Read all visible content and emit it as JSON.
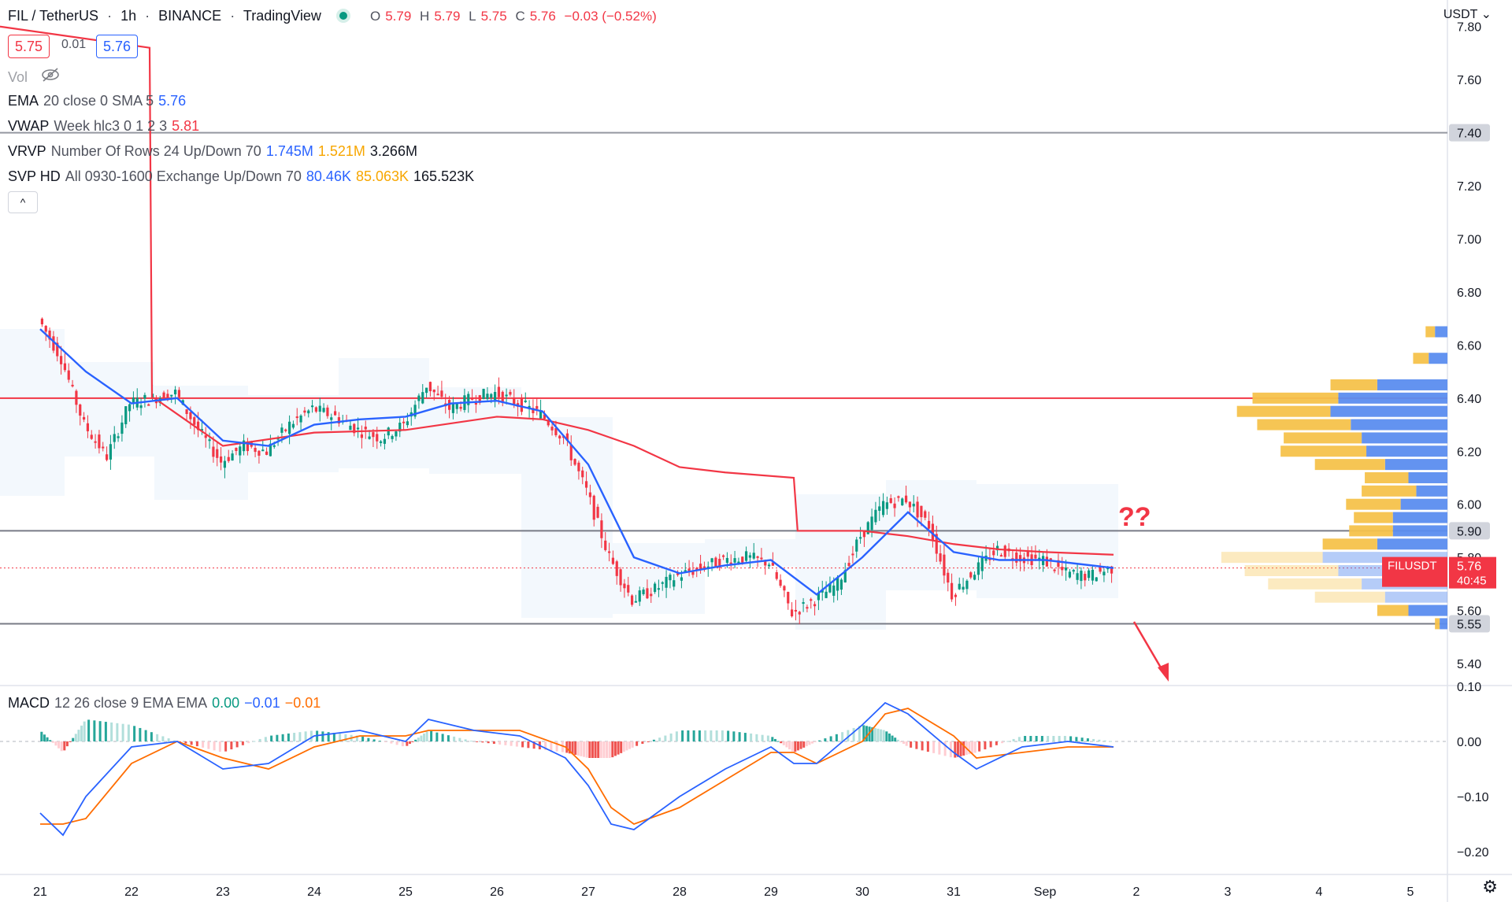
{
  "header": {
    "symbol": "FIL / TetherUS",
    "interval": "1h",
    "exchange": "BINANCE",
    "source": "TradingView",
    "ohlc": {
      "o_label": "O",
      "o": "5.79",
      "h_label": "H",
      "h": "5.79",
      "l_label": "L",
      "l": "5.75",
      "c_label": "C",
      "c": "5.76",
      "change": "−0.03 (−0.52%)"
    }
  },
  "trade": {
    "sell": "5.75",
    "spread": "0.01",
    "buy": "5.76"
  },
  "indicators": {
    "vol_label": "Vol",
    "ema": {
      "name": "EMA",
      "params": "20 close 0 SMA 5",
      "value": "5.76"
    },
    "vwap": {
      "name": "VWAP",
      "params": "Week hlc3 0 1 2 3",
      "value": "5.81"
    },
    "vrvp": {
      "name": "VRVP",
      "params": "Number Of Rows 24 Up/Down 70",
      "up": "1.745M",
      "down": "1.521M",
      "total": "3.266M"
    },
    "svp": {
      "name": "SVP HD",
      "params": "All 0930-1600 Exchange Up/Down 70",
      "up": "80.46K",
      "down": "85.063K",
      "total": "165.523K"
    },
    "macd": {
      "name": "MACD",
      "params": "12 26 close 9 EMA EMA",
      "hist": "0.00",
      "macd": "−0.01",
      "signal": "−0.01"
    }
  },
  "annotation": {
    "question": "??"
  },
  "axis": {
    "unit": "USDT",
    "price_ticks": [
      "7.80",
      "7.60",
      "7.40",
      "7.20",
      "7.00",
      "6.80",
      "6.60",
      "6.40",
      "6.20",
      "6.00",
      "5.90",
      "5.80",
      "5.60",
      "5.55",
      "5.40"
    ],
    "macd_ticks": [
      "0.10",
      "0.00",
      "−0.10",
      "−0.20"
    ],
    "time_ticks": [
      "21",
      "22",
      "23",
      "24",
      "25",
      "26",
      "27",
      "28",
      "29",
      "30",
      "31",
      "Sep",
      "2",
      "3",
      "4",
      "5"
    ]
  },
  "current_price": {
    "symbol": "FILUSDT",
    "price": "5.76",
    "countdown": "40:45"
  },
  "colors": {
    "up": "#089981",
    "down": "#f23645",
    "ema": "#2962ff",
    "vwap": "#f23645",
    "resistance": "#f23645",
    "support": "#787b86",
    "vp_up": "#5b8def",
    "vp_down": "#f5c24b",
    "macd": "#2962ff",
    "signal": "#ff6d00"
  },
  "chart_data": {
    "type": "line",
    "title": "FIL / TetherUS 1h BINANCE",
    "price_range": [
      5.32,
      7.9
    ],
    "macd_range": [
      -0.24,
      0.1
    ],
    "levels": [
      {
        "label": "7.40",
        "price": 7.4,
        "color": "#9598a1"
      },
      {
        "label": "6.40",
        "price": 6.4,
        "color": "#f23645"
      },
      {
        "label": "5.90",
        "price": 5.9,
        "color": "#787b86"
      },
      {
        "label": "5.55",
        "price": 5.55,
        "color": "#787b86"
      }
    ],
    "close_series": [
      {
        "x": "Aug 21 00:00",
        "y": 6.7
      },
      {
        "x": "Aug 21 06:00",
        "y": 6.55
      },
      {
        "x": "Aug 21 12:00",
        "y": 6.3
      },
      {
        "x": "Aug 21 18:00",
        "y": 6.18
      },
      {
        "x": "Aug 22 00:00",
        "y": 6.38
      },
      {
        "x": "Aug 22 06:00",
        "y": 6.4
      },
      {
        "x": "Aug 22 12:00",
        "y": 6.42
      },
      {
        "x": "Aug 22 18:00",
        "y": 6.28
      },
      {
        "x": "Aug 23 00:00",
        "y": 6.16
      },
      {
        "x": "Aug 23 06:00",
        "y": 6.22
      },
      {
        "x": "Aug 23 12:00",
        "y": 6.2
      },
      {
        "x": "Aug 23 18:00",
        "y": 6.3
      },
      {
        "x": "Aug 24 00:00",
        "y": 6.36
      },
      {
        "x": "Aug 24 06:00",
        "y": 6.33
      },
      {
        "x": "Aug 24 12:00",
        "y": 6.28
      },
      {
        "x": "Aug 24 18:00",
        "y": 6.25
      },
      {
        "x": "Aug 25 00:00",
        "y": 6.3
      },
      {
        "x": "Aug 25 06:00",
        "y": 6.45
      },
      {
        "x": "Aug 25 12:00",
        "y": 6.36
      },
      {
        "x": "Aug 25 18:00",
        "y": 6.4
      },
      {
        "x": "Aug 26 00:00",
        "y": 6.42
      },
      {
        "x": "Aug 26 06:00",
        "y": 6.38
      },
      {
        "x": "Aug 26 12:00",
        "y": 6.34
      },
      {
        "x": "Aug 26 18:00",
        "y": 6.25
      },
      {
        "x": "Aug 27 00:00",
        "y": 6.05
      },
      {
        "x": "Aug 27 06:00",
        "y": 5.8
      },
      {
        "x": "Aug 27 12:00",
        "y": 5.64
      },
      {
        "x": "Aug 27 18:00",
        "y": 5.68
      },
      {
        "x": "Aug 28 00:00",
        "y": 5.73
      },
      {
        "x": "Aug 28 06:00",
        "y": 5.76
      },
      {
        "x": "Aug 28 12:00",
        "y": 5.79
      },
      {
        "x": "Aug 28 18:00",
        "y": 5.8
      },
      {
        "x": "Aug 29 00:00",
        "y": 5.78
      },
      {
        "x": "Aug 29 06:00",
        "y": 5.59
      },
      {
        "x": "Aug 29 12:00",
        "y": 5.64
      },
      {
        "x": "Aug 29 18:00",
        "y": 5.7
      },
      {
        "x": "Aug 30 00:00",
        "y": 5.88
      },
      {
        "x": "Aug 30 06:00",
        "y": 6.0
      },
      {
        "x": "Aug 30 12:00",
        "y": 6.02
      },
      {
        "x": "Aug 30 18:00",
        "y": 5.92
      },
      {
        "x": "Aug 31 00:00",
        "y": 5.66
      },
      {
        "x": "Aug 31 06:00",
        "y": 5.75
      },
      {
        "x": "Aug 31 12:00",
        "y": 5.83
      },
      {
        "x": "Aug 31 18:00",
        "y": 5.8
      },
      {
        "x": "Sep 1 00:00",
        "y": 5.79
      },
      {
        "x": "Sep 1 06:00",
        "y": 5.74
      },
      {
        "x": "Sep 1 12:00",
        "y": 5.73
      },
      {
        "x": "Sep 1 18:00",
        "y": 5.76
      }
    ],
    "ema_series": [
      {
        "x": "Aug 21 00:00",
        "y": 6.66
      },
      {
        "x": "Aug 21 12:00",
        "y": 6.5
      },
      {
        "x": "Aug 22 00:00",
        "y": 6.38
      },
      {
        "x": "Aug 22 12:00",
        "y": 6.4
      },
      {
        "x": "Aug 23 00:00",
        "y": 6.24
      },
      {
        "x": "Aug 23 12:00",
        "y": 6.22
      },
      {
        "x": "Aug 24 00:00",
        "y": 6.3
      },
      {
        "x": "Aug 24 12:00",
        "y": 6.32
      },
      {
        "x": "Aug 25 00:00",
        "y": 6.33
      },
      {
        "x": "Aug 25 12:00",
        "y": 6.38
      },
      {
        "x": "Aug 26 00:00",
        "y": 6.39
      },
      {
        "x": "Aug 26 12:00",
        "y": 6.35
      },
      {
        "x": "Aug 27 00:00",
        "y": 6.15
      },
      {
        "x": "Aug 27 12:00",
        "y": 5.8
      },
      {
        "x": "Aug 28 00:00",
        "y": 5.74
      },
      {
        "x": "Aug 28 12:00",
        "y": 5.77
      },
      {
        "x": "Aug 29 00:00",
        "y": 5.79
      },
      {
        "x": "Aug 29 12:00",
        "y": 5.66
      },
      {
        "x": "Aug 30 00:00",
        "y": 5.8
      },
      {
        "x": "Aug 30 12:00",
        "y": 5.97
      },
      {
        "x": "Aug 31 00:00",
        "y": 5.82
      },
      {
        "x": "Aug 31 12:00",
        "y": 5.79
      },
      {
        "x": "Sep 1 00:00",
        "y": 5.79
      },
      {
        "x": "Sep 1 18:00",
        "y": 5.76
      }
    ],
    "vwap_series": [
      {
        "x": "Aug 22 06:00",
        "y": 6.4
      },
      {
        "x": "Aug 23 00:00",
        "y": 6.22
      },
      {
        "x": "Aug 24 00:00",
        "y": 6.27
      },
      {
        "x": "Aug 25 00:00",
        "y": 6.28
      },
      {
        "x": "Aug 26 00:00",
        "y": 6.33
      },
      {
        "x": "Aug 26 12:00",
        "y": 6.32
      },
      {
        "x": "Aug 27 00:00",
        "y": 6.28
      },
      {
        "x": "Aug 27 12:00",
        "y": 6.22
      },
      {
        "x": "Aug 28 00:00",
        "y": 6.14
      },
      {
        "x": "Aug 28 12:00",
        "y": 6.12
      },
      {
        "x": "Aug 29 06:00",
        "y": 6.1
      },
      {
        "x": "Aug 29 07:00",
        "y": 5.9
      },
      {
        "x": "Aug 30 00:00",
        "y": 5.9
      },
      {
        "x": "Aug 30 12:00",
        "y": 5.88
      },
      {
        "x": "Aug 31 00:00",
        "y": 5.85
      },
      {
        "x": "Aug 31 12:00",
        "y": 5.83
      },
      {
        "x": "Sep 1 00:00",
        "y": 5.82
      },
      {
        "x": "Sep 1 18:00",
        "y": 5.81
      }
    ],
    "visible_range_volume_profile": [
      {
        "price": 6.65,
        "up": 0.08,
        "down": 0.06
      },
      {
        "price": 6.55,
        "up": 0.12,
        "down": 0.1
      },
      {
        "price": 6.45,
        "up": 0.45,
        "down": 0.3
      },
      {
        "price": 6.4,
        "up": 0.7,
        "down": 0.55
      },
      {
        "price": 6.35,
        "up": 0.75,
        "down": 0.6
      },
      {
        "price": 6.3,
        "up": 0.62,
        "down": 0.6
      },
      {
        "price": 6.25,
        "up": 0.55,
        "down": 0.5
      },
      {
        "price": 6.2,
        "up": 0.52,
        "down": 0.55
      },
      {
        "price": 6.15,
        "up": 0.4,
        "down": 0.45
      },
      {
        "price": 6.1,
        "up": 0.25,
        "down": 0.28
      },
      {
        "price": 6.05,
        "up": 0.2,
        "down": 0.35
      },
      {
        "price": 6.0,
        "up": 0.3,
        "down": 0.35
      },
      {
        "price": 5.95,
        "up": 0.35,
        "down": 0.25
      },
      {
        "price": 5.9,
        "up": 0.35,
        "down": 0.28
      },
      {
        "price": 5.85,
        "up": 0.45,
        "down": 0.35
      },
      {
        "price": 5.8,
        "up": 0.8,
        "down": 0.65
      },
      {
        "price": 5.75,
        "up": 0.7,
        "down": 0.6
      },
      {
        "price": 5.7,
        "up": 0.55,
        "down": 0.6
      },
      {
        "price": 5.65,
        "up": 0.4,
        "down": 0.45
      },
      {
        "price": 5.6,
        "up": 0.25,
        "down": 0.2
      },
      {
        "price": 5.55,
        "up": 0.05,
        "down": 0.03
      }
    ],
    "macd_series": [
      {
        "x": "Aug 21 00:00",
        "macd": -0.13,
        "signal": -0.15
      },
      {
        "x": "Aug 21 06:00",
        "macd": -0.17,
        "signal": -0.15
      },
      {
        "x": "Aug 21 12:00",
        "macd": -0.1,
        "signal": -0.14
      },
      {
        "x": "Aug 22 00:00",
        "macd": -0.01,
        "signal": -0.04
      },
      {
        "x": "Aug 22 12:00",
        "macd": 0.0,
        "signal": 0.0
      },
      {
        "x": "Aug 23 00:00",
        "macd": -0.05,
        "signal": -0.03
      },
      {
        "x": "Aug 23 12:00",
        "macd": -0.04,
        "signal": -0.05
      },
      {
        "x": "Aug 24 00:00",
        "macd": 0.01,
        "signal": -0.01
      },
      {
        "x": "Aug 24 12:00",
        "macd": 0.02,
        "signal": 0.01
      },
      {
        "x": "Aug 25 00:00",
        "macd": 0.0,
        "signal": 0.01
      },
      {
        "x": "Aug 25 06:00",
        "macd": 0.04,
        "signal": 0.02
      },
      {
        "x": "Aug 25 18:00",
        "macd": 0.02,
        "signal": 0.02
      },
      {
        "x": "Aug 26 06:00",
        "macd": 0.01,
        "signal": 0.02
      },
      {
        "x": "Aug 26 18:00",
        "macd": -0.03,
        "signal": -0.01
      },
      {
        "x": "Aug 27 00:00",
        "macd": -0.08,
        "signal": -0.05
      },
      {
        "x": "Aug 27 06:00",
        "macd": -0.15,
        "signal": -0.12
      },
      {
        "x": "Aug 27 12:00",
        "macd": -0.16,
        "signal": -0.15
      },
      {
        "x": "Aug 28 00:00",
        "macd": -0.1,
        "signal": -0.12
      },
      {
        "x": "Aug 28 12:00",
        "macd": -0.05,
        "signal": -0.07
      },
      {
        "x": "Aug 29 00:00",
        "macd": -0.01,
        "signal": -0.02
      },
      {
        "x": "Aug 29 06:00",
        "macd": -0.04,
        "signal": -0.02
      },
      {
        "x": "Aug 29 12:00",
        "macd": -0.04,
        "signal": -0.04
      },
      {
        "x": "Aug 30 00:00",
        "macd": 0.03,
        "signal": 0.0
      },
      {
        "x": "Aug 30 06:00",
        "macd": 0.07,
        "signal": 0.05
      },
      {
        "x": "Aug 30 12:00",
        "macd": 0.05,
        "signal": 0.06
      },
      {
        "x": "Aug 31 00:00",
        "macd": -0.02,
        "signal": 0.01
      },
      {
        "x": "Aug 31 06:00",
        "macd": -0.05,
        "signal": -0.03
      },
      {
        "x": "Aug 31 18:00",
        "macd": -0.01,
        "signal": -0.02
      },
      {
        "x": "Sep 1 06:00",
        "macd": 0.0,
        "signal": -0.01
      },
      {
        "x": "Sep 1 18:00",
        "macd": -0.01,
        "signal": -0.01
      }
    ]
  }
}
